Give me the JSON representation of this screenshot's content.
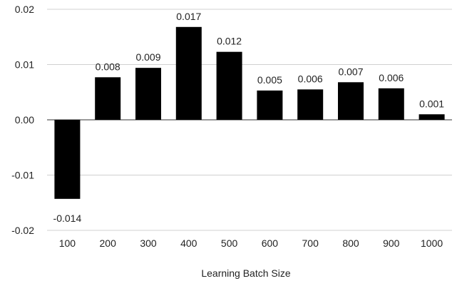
{
  "chart_data": {
    "type": "bar",
    "title": "",
    "xlabel": "Learning Batch Size",
    "ylabel": "",
    "categories": [
      "100",
      "200",
      "300",
      "400",
      "500",
      "600",
      "700",
      "800",
      "900",
      "1000"
    ],
    "values": [
      -0.0143,
      0.0077,
      0.0094,
      0.0168,
      0.0123,
      0.0053,
      0.0055,
      0.0068,
      0.0057,
      0.001
    ],
    "data_labels": [
      "-0.014",
      "0.008",
      "0.009",
      "0.017",
      "0.012",
      "0.005",
      "0.006",
      "0.007",
      "0.006",
      "0.001"
    ],
    "ylim": [
      -0.02,
      0.02
    ],
    "yticks": [
      0.02,
      0.01,
      0.0,
      -0.01,
      -0.02
    ],
    "ytick_labels": [
      "0.02",
      "0.01",
      "0.00",
      "-0.01",
      "-0.02"
    ],
    "grid": true,
    "legend": "none",
    "bar_color": "#000000"
  }
}
